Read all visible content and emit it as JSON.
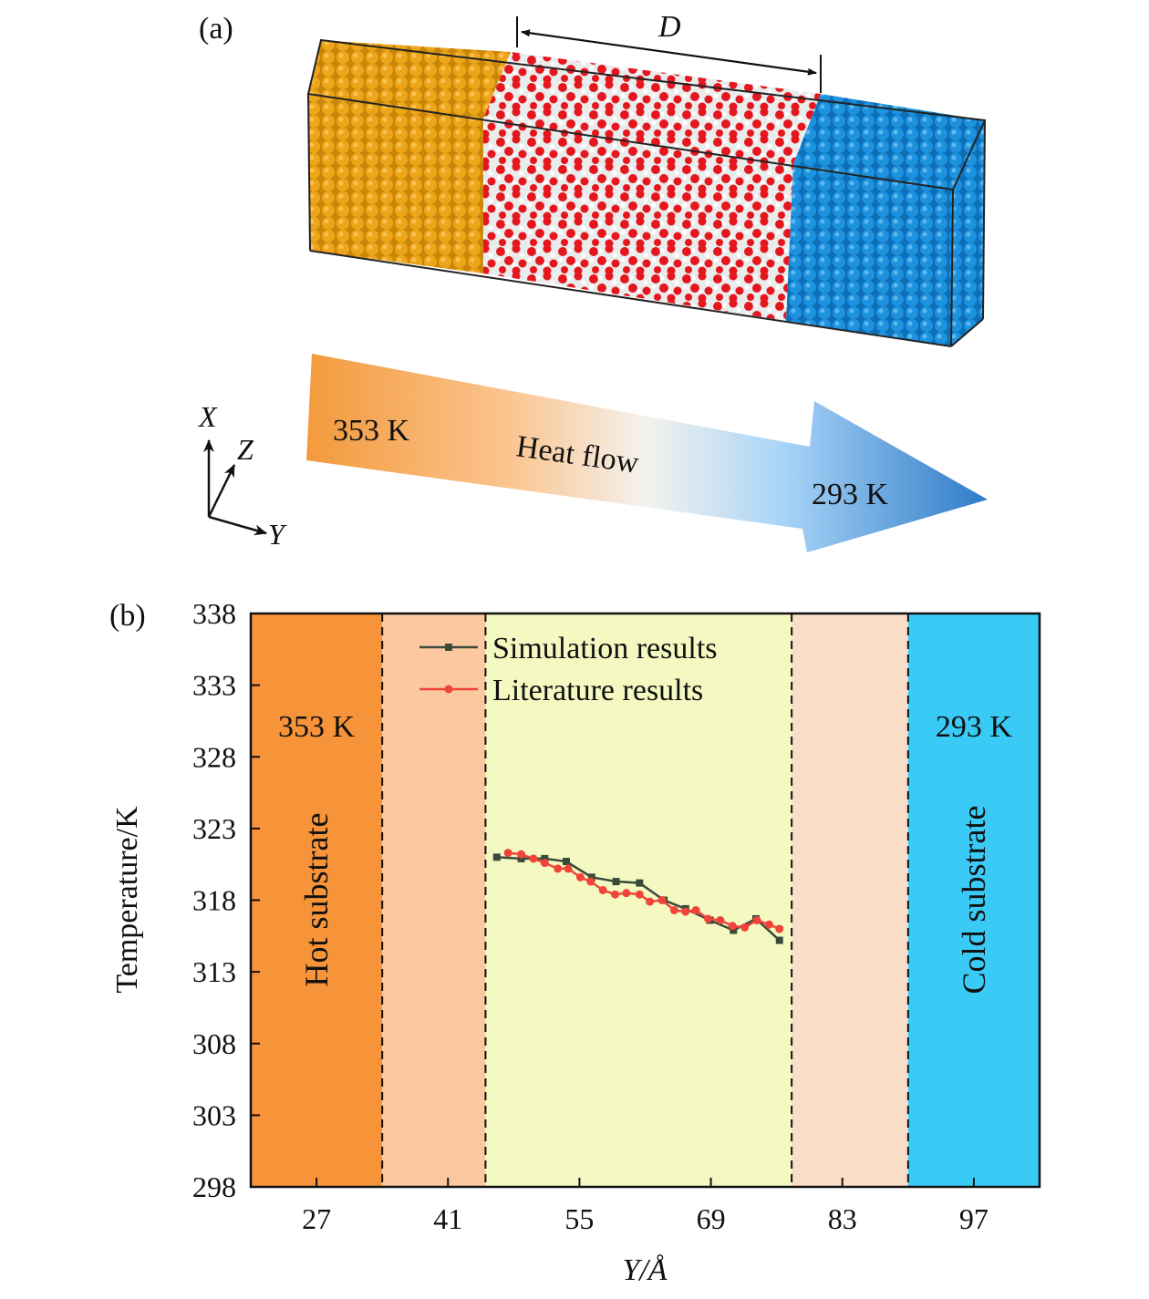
{
  "panel_a": {
    "label": "(a)",
    "distance_label": "D",
    "hot_temp": "353 K",
    "cold_temp": "293 K",
    "arrow_label": "Heat flow",
    "axes": {
      "x": "X",
      "y": "Y",
      "z": "Z"
    },
    "colors": {
      "hot_atoms": "#e8a012",
      "water_oxygen": "#e8141e",
      "water_hydrogen": "#e6e6e6",
      "cold_atoms": "#1a8fdc"
    }
  },
  "chart_data": {
    "type": "line",
    "panel_label": "(b)",
    "xlabel": "Y/Å",
    "ylabel": "Temperature/K",
    "xlim": [
      20,
      104
    ],
    "ylim": [
      298,
      338
    ],
    "xticks": [
      27,
      41,
      55,
      69,
      83,
      97
    ],
    "yticks": [
      298,
      303,
      308,
      313,
      318,
      323,
      328,
      333,
      338
    ],
    "grid": false,
    "legend_position": "top-center",
    "regions": [
      {
        "from": 20,
        "to": 34,
        "color": "#f7943a",
        "label": "Hot substrate",
        "temp": "353 K"
      },
      {
        "from": 34,
        "to": 45,
        "color": "#fbc8a0",
        "label": "",
        "temp": ""
      },
      {
        "from": 45,
        "to": 77.6,
        "color": "#f4f9c2",
        "label": "",
        "temp": ""
      },
      {
        "from": 77.6,
        "to": 90,
        "color": "#fbdec8",
        "label": "",
        "temp": ""
      },
      {
        "from": 90,
        "to": 104,
        "color": "#39cbf6",
        "label": "Cold substrate",
        "temp": "293 K"
      }
    ],
    "series": [
      {
        "name": "Simulation results",
        "color": "#3a4a3a",
        "marker": "square",
        "x": [
          46.2,
          48.8,
          51.3,
          53.6,
          56.3,
          58.9,
          61.4,
          64.0,
          66.3,
          68.9,
          71.4,
          73.8,
          76.3
        ],
        "y": [
          321.0,
          320.9,
          320.9,
          320.7,
          319.6,
          319.3,
          319.2,
          318.0,
          317.4,
          316.6,
          315.9,
          316.7,
          315.2
        ]
      },
      {
        "name": "Literature results",
        "color": "#f0443a",
        "marker": "circle",
        "x": [
          47.4,
          48.8,
          50.1,
          51.3,
          52.7,
          53.8,
          55.1,
          56.2,
          57.5,
          58.8,
          60.0,
          61.4,
          62.5,
          63.8,
          65.1,
          66.3,
          67.4,
          68.7,
          70.0,
          71.3,
          72.6,
          73.9,
          75.2,
          76.3
        ],
        "y": [
          321.3,
          321.2,
          320.9,
          320.6,
          320.2,
          320.2,
          319.6,
          319.3,
          318.7,
          318.4,
          318.5,
          318.4,
          317.9,
          318.0,
          317.3,
          317.2,
          317.3,
          316.7,
          316.6,
          316.2,
          316.1,
          316.6,
          316.3,
          316.0
        ]
      }
    ]
  }
}
